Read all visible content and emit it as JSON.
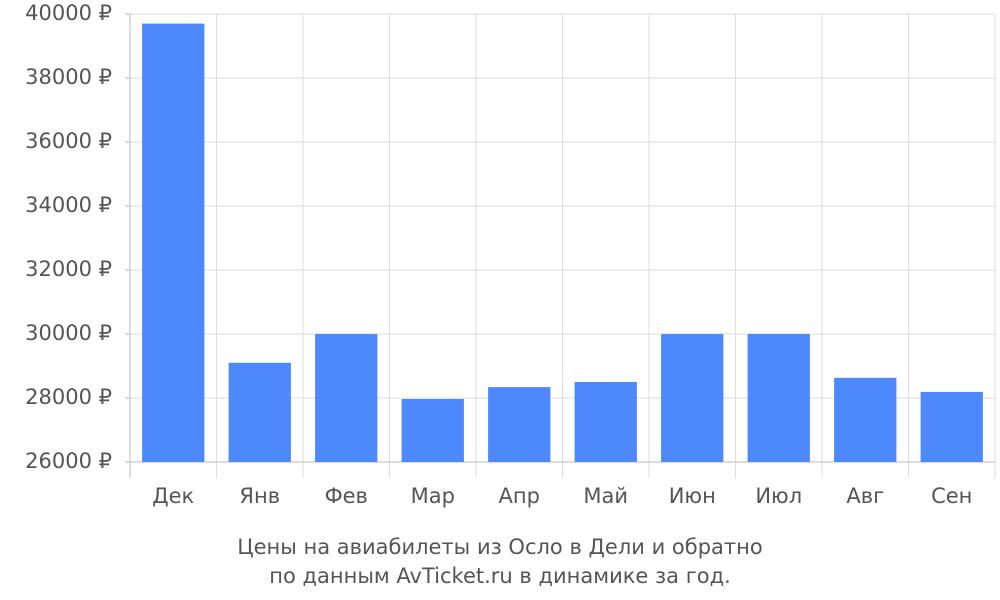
{
  "chart_data": {
    "type": "bar",
    "title": "Цены на авиабилеты из Осло в Дели и обратно",
    "subtitle": "по данным AvTicket.ru в динамике за год.",
    "categories": [
      "Дек",
      "Янв",
      "Фев",
      "Мар",
      "Апр",
      "Май",
      "Июн",
      "Июл",
      "Авг",
      "Сен"
    ],
    "values": [
      39700,
      29100,
      30000,
      27970,
      28340,
      28500,
      30000,
      30000,
      28630,
      28190
    ],
    "color": "#4d88fc",
    "ylim": [
      26000,
      40000
    ],
    "yticks": [
      {
        "value": 26000,
        "label": "26000 ₽"
      },
      {
        "value": 28000,
        "label": "28000 ₽"
      },
      {
        "value": 30000,
        "label": "30000 ₽"
      },
      {
        "value": 32000,
        "label": "32000 ₽"
      },
      {
        "value": 34000,
        "label": "34000 ₽"
      },
      {
        "value": 36000,
        "label": "36000 ₽"
      },
      {
        "value": 38000,
        "label": "38000 ₽"
      },
      {
        "value": 40000,
        "label": "40000 ₽"
      }
    ],
    "grid": true
  }
}
